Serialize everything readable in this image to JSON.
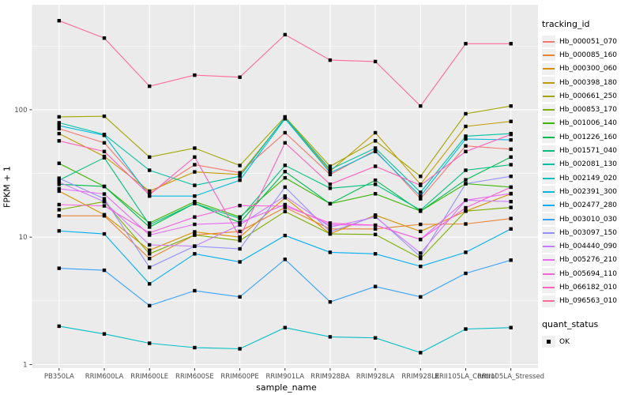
{
  "figure": {
    "y_axis_title": "FPKM + 1",
    "x_axis_title": "sample_name"
  },
  "legend": {
    "tracking_title": "tracking_id",
    "quant_title": "quant_status",
    "quant_items": [
      {
        "label": "OK",
        "shape": "filled-black-square"
      }
    ]
  },
  "chart_data": {
    "type": "line",
    "title": "",
    "xlabel": "sample_name",
    "ylabel": "FPKM + 1",
    "y_scale": "log10",
    "ylim": [
      1,
      550
    ],
    "y_major_ticks": [
      1,
      10,
      100
    ],
    "y_tick_labels": [
      "1",
      "10",
      "100"
    ],
    "y_minor_ticks": [
      3.162,
      31.62,
      316.2
    ],
    "grid": "white-on-gray",
    "panel_background": "#EBEBEB",
    "grid_color": "#FFFFFF",
    "tick_label_color": "#4D4D4D",
    "point_shape": "filled-square-black",
    "legend_position": "right",
    "categories": [
      "PB350LA",
      "RRIM600LA",
      "RRIM600LE",
      "RRIM600SE",
      "RRIM600PE",
      "RRIM901LA",
      "RRIM928BA",
      "RRIM928LA",
      "RRIM928LE",
      "RRII105LA_Control",
      "RRII105LA_Stressed"
    ],
    "series": [
      {
        "name": "Hb_000051_070",
        "color": "#F8766D",
        "values": [
          71,
          55,
          22,
          37,
          32,
          66,
          31,
          48,
          20,
          52,
          49
        ]
      },
      {
        "name": "Hb_000085_160",
        "color": "#EA8331",
        "values": [
          14.7,
          14.7,
          6.8,
          10.4,
          11.1,
          17.1,
          11.6,
          11.6,
          12.6,
          12.7,
          14
        ]
      },
      {
        "name": "Hb_000300_060",
        "color": "#D89000",
        "values": [
          23,
          15,
          7.9,
          11,
          10,
          20.4,
          10.6,
          14.9,
          11.1,
          16,
          21.9
        ]
      },
      {
        "name": "Hb_000398_180",
        "color": "#C09B00",
        "values": [
          65,
          43,
          23,
          32.5,
          31,
          86,
          33,
          66,
          26,
          74,
          81
        ]
      },
      {
        "name": "Hb_000661_250",
        "color": "#A3A500",
        "values": [
          88,
          89,
          42.5,
          50,
          36.5,
          88,
          36,
          57,
          30,
          93,
          107
        ]
      },
      {
        "name": "Hb_000853_170",
        "color": "#7CAE00",
        "values": [
          16.4,
          19,
          7.4,
          10.4,
          9.4,
          15.9,
          10.6,
          10.5,
          6.8,
          16,
          17.1
        ]
      },
      {
        "name": "Hb_001006_140",
        "color": "#39B600",
        "values": [
          38,
          25,
          12.9,
          19,
          14.4,
          29.2,
          18.3,
          21.9,
          16,
          26.3,
          24.7
        ]
      },
      {
        "name": "Hb_001226_160",
        "color": "#00BB4E",
        "values": [
          26,
          25,
          12,
          18.4,
          13,
          32.7,
          18.3,
          28,
          16,
          28.2,
          42.5
        ]
      },
      {
        "name": "Hb_001571_040",
        "color": "#00BF7D",
        "values": [
          28,
          42,
          12.5,
          18.4,
          14,
          36.6,
          24.2,
          26,
          16.3,
          33.5,
          37
        ]
      },
      {
        "name": "Hb_002081_130",
        "color": "#00C1A3",
        "values": [
          79,
          64,
          33.5,
          25.5,
          30,
          87,
          34,
          50,
          22.5,
          62,
          65
        ]
      },
      {
        "name": "Hb_002149_020",
        "color": "#00BFC4",
        "values": [
          2.0,
          1.74,
          1.47,
          1.36,
          1.33,
          1.95,
          1.65,
          1.62,
          1.24,
          1.9,
          1.95
        ]
      },
      {
        "name": "Hb_002391_300",
        "color": "#00BAE0",
        "values": [
          75,
          63,
          21,
          21,
          28,
          85,
          32,
          47,
          21,
          59,
          58
        ]
      },
      {
        "name": "Hb_002477_280",
        "color": "#00B0F6",
        "values": [
          11.2,
          10.6,
          4.3,
          7.4,
          6.4,
          10.3,
          7.6,
          7.4,
          5.9,
          7.6,
          11.6
        ]
      },
      {
        "name": "Hb_003010_030",
        "color": "#35A2FF",
        "values": [
          5.7,
          5.5,
          2.9,
          3.8,
          3.4,
          6.7,
          3.1,
          4.1,
          3.4,
          5.2,
          6.6
        ]
      },
      {
        "name": "Hb_003097_150",
        "color": "#9590FF",
        "values": [
          29,
          20,
          5.8,
          8.5,
          8.1,
          24.7,
          11,
          14.6,
          7,
          26.3,
          30
        ]
      },
      {
        "name": "Hb_004440_090",
        "color": "#C77CFF",
        "values": [
          27,
          19,
          8.7,
          8.5,
          12.5,
          21,
          12,
          14.4,
          7.5,
          19.5,
          19
        ]
      },
      {
        "name": "Hb_005276_210",
        "color": "#E76BF3",
        "values": [
          24,
          21.8,
          10.4,
          12.6,
          13,
          18,
          12.5,
          12.4,
          9.6,
          19.5,
          22
        ]
      },
      {
        "name": "Hb_005694_110",
        "color": "#FA62DB",
        "values": [
          18,
          17.6,
          10.8,
          14.4,
          17.7,
          17.5,
          12.9,
          12.4,
          9.6,
          17,
          24.7
        ]
      },
      {
        "name": "Hb_066182_010",
        "color": "#FF62BC",
        "values": [
          57,
          47,
          21.5,
          42.5,
          10,
          55,
          26,
          36,
          25.5,
          47,
          64
        ]
      },
      {
        "name": "Hb_096563_010",
        "color": "#FF6A98",
        "values": [
          500,
          365,
          153,
          187,
          180,
          388,
          245,
          239,
          107,
          330,
          330
        ]
      }
    ]
  }
}
